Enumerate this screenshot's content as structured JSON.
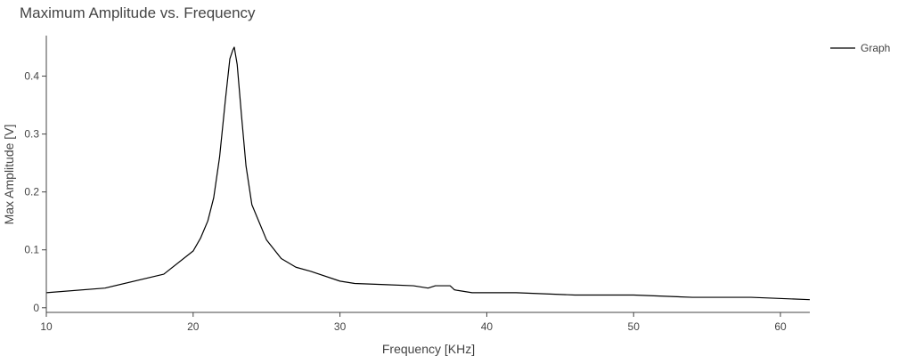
{
  "chart_data": {
    "type": "line",
    "title": "Maximum Amplitude vs. Frequency",
    "xlabel": "Frequency [KHz]",
    "ylabel": "Max Amplitude [V]",
    "xlim": [
      10,
      62
    ],
    "ylim": [
      -0.008,
      0.47
    ],
    "xticks": [
      10,
      20,
      30,
      40,
      50,
      60
    ],
    "xtick_labels": [
      "10",
      "20",
      "30",
      "40",
      "50",
      "60"
    ],
    "yticks": [
      0,
      0.1,
      0.2,
      0.3,
      0.4
    ],
    "ytick_labels": [
      "0",
      "0.1",
      "0.2",
      "0.3",
      "0.4"
    ],
    "grid": false,
    "legend_position": "top-right",
    "series": [
      {
        "name": "Graph",
        "color": "#000000",
        "x": [
          10,
          14,
          18,
          20,
          20.5,
          21,
          21.4,
          21.8,
          22.2,
          22.5,
          22.7,
          22.8,
          23,
          23.3,
          23.6,
          24,
          25,
          26,
          27,
          28,
          30,
          31,
          32,
          33,
          35,
          36,
          36.5,
          37,
          37.5,
          37.8,
          38,
          39,
          42,
          46,
          50,
          54,
          58,
          62
        ],
        "y": [
          0.026,
          0.034,
          0.058,
          0.098,
          0.12,
          0.15,
          0.19,
          0.26,
          0.36,
          0.43,
          0.445,
          0.45,
          0.42,
          0.33,
          0.245,
          0.178,
          0.117,
          0.085,
          0.07,
          0.063,
          0.046,
          0.042,
          0.041,
          0.04,
          0.038,
          0.034,
          0.038,
          0.038,
          0.038,
          0.031,
          0.03,
          0.026,
          0.026,
          0.022,
          0.022,
          0.018,
          0.018,
          0.014
        ]
      }
    ]
  }
}
